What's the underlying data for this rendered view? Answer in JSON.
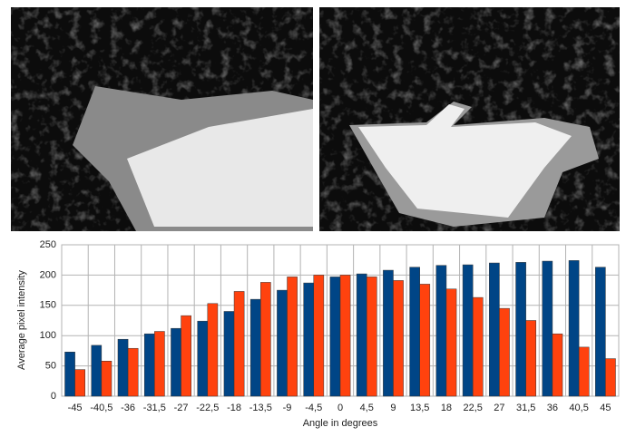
{
  "chart_data": {
    "type": "bar",
    "y_label": "Average pixel intensity",
    "x_label": "Angle in degrees",
    "categories": [
      "-45",
      "-40,5",
      "-36",
      "-31,5",
      "-27",
      "-22,5",
      "-18",
      "-13,5",
      "-9",
      "-4,5",
      "0",
      "4,5",
      "9",
      "13,5",
      "18",
      "22,5",
      "27",
      "31,5",
      "36",
      "40,5",
      "45"
    ],
    "series": [
      {
        "color": "#004586",
        "values": [
          73,
          84,
          94,
          103,
          112,
          124,
          140,
          160,
          175,
          187,
          197,
          202,
          208,
          213,
          216,
          217,
          220,
          221,
          223,
          224,
          213
        ]
      },
      {
        "color": "#ff420e",
        "values": [
          44,
          58,
          79,
          107,
          133,
          153,
          173,
          188,
          197,
          200,
          200,
          197,
          191,
          185,
          177,
          163,
          145,
          125,
          103,
          81,
          62
        ]
      }
    ],
    "ylim": [
      0,
      250
    ],
    "yticks": [
      0,
      50,
      100,
      150,
      200,
      250
    ],
    "grid": true
  }
}
